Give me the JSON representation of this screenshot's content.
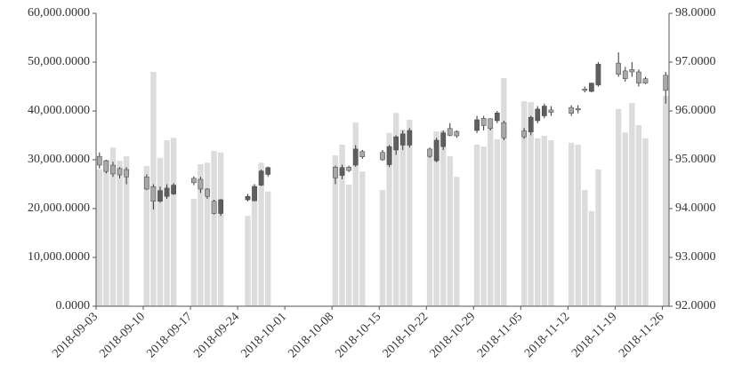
{
  "chart_data": {
    "type": "candlestick-volume",
    "x": [
      "2018-09-03",
      "2018-09-04",
      "2018-09-05",
      "2018-09-06",
      "2018-09-07",
      "2018-09-10",
      "2018-09-11",
      "2018-09-12",
      "2018-09-13",
      "2018-09-14",
      "2018-09-17",
      "2018-09-18",
      "2018-09-19",
      "2018-09-20",
      "2018-09-21",
      "2018-09-25",
      "2018-09-26",
      "2018-09-27",
      "2018-09-28",
      "2018-10-08",
      "2018-10-09",
      "2018-10-10",
      "2018-10-11",
      "2018-10-12",
      "2018-10-15",
      "2018-10-16",
      "2018-10-17",
      "2018-10-18",
      "2018-10-19",
      "2018-10-22",
      "2018-10-23",
      "2018-10-24",
      "2018-10-25",
      "2018-10-26",
      "2018-10-29",
      "2018-10-30",
      "2018-10-31",
      "2018-11-01",
      "2018-11-02",
      "2018-11-05",
      "2018-11-06",
      "2018-11-07",
      "2018-11-08",
      "2018-11-09",
      "2018-11-12",
      "2018-11-13",
      "2018-11-14",
      "2018-11-15",
      "2018-11-16",
      "2018-11-19",
      "2018-11-20",
      "2018-11-21",
      "2018-11-22",
      "2018-11-23",
      "2018-11-26"
    ],
    "volume": [
      28000,
      30000,
      32500,
      29800,
      30700,
      28700,
      48000,
      30400,
      34000,
      34500,
      22000,
      29100,
      29400,
      31800,
      31500,
      18500,
      24900,
      29400,
      23500,
      30900,
      33100,
      24900,
      37600,
      27600,
      23800,
      35500,
      39600,
      36200,
      38200,
      30900,
      35800,
      36000,
      30700,
      26500,
      33100,
      32700,
      36400,
      34200,
      46700,
      42000,
      41800,
      34400,
      34900,
      34000,
      33500,
      33100,
      23800,
      19500,
      28000,
      40400,
      35600,
      41600,
      37100,
      34400,
      43100
    ],
    "open": [
      95.07,
      94.98,
      94.89,
      94.82,
      94.8,
      94.65,
      94.45,
      94.15,
      94.25,
      94.3,
      94.62,
      94.6,
      94.4,
      94.15,
      93.9,
      94.18,
      94.16,
      94.48,
      94.7,
      94.85,
      94.68,
      94.85,
      94.89,
      95.17,
      95.15,
      94.9,
      95.2,
      95.3,
      95.3,
      95.22,
      94.98,
      95.27,
      95.64,
      95.58,
      95.6,
      95.85,
      95.84,
      95.8,
      95.76,
      95.59,
      95.57,
      95.8,
      95.9,
      96.02,
      96.07,
      96.05,
      96.45,
      96.4,
      96.53,
      96.98,
      96.82,
      96.85,
      96.8,
      96.66,
      96.73
    ],
    "high": [
      95.15,
      95.0,
      94.96,
      94.85,
      94.85,
      94.7,
      94.5,
      94.45,
      94.5,
      94.52,
      94.66,
      94.65,
      94.42,
      94.18,
      94.2,
      94.3,
      94.5,
      94.8,
      94.86,
      94.88,
      94.9,
      94.88,
      95.3,
      95.2,
      95.2,
      95.3,
      95.5,
      95.6,
      95.65,
      95.25,
      95.45,
      95.6,
      95.75,
      95.6,
      95.9,
      95.9,
      95.85,
      96.0,
      95.8,
      95.65,
      95.9,
      96.1,
      96.15,
      96.1,
      96.12,
      96.12,
      96.5,
      96.58,
      97.0,
      97.2,
      96.9,
      97.0,
      96.85,
      96.7,
      96.8
    ],
    "low": [
      94.82,
      94.72,
      94.65,
      94.62,
      94.5,
      94.38,
      93.98,
      94.12,
      94.2,
      94.28,
      94.48,
      94.32,
      94.2,
      93.88,
      93.85,
      94.15,
      94.15,
      94.46,
      94.65,
      94.5,
      94.6,
      94.75,
      94.86,
      95.02,
      94.98,
      94.85,
      95.1,
      95.2,
      95.25,
      95.04,
      94.95,
      95.2,
      95.48,
      95.45,
      95.55,
      95.6,
      95.6,
      95.75,
      95.4,
      95.43,
      95.5,
      95.75,
      95.85,
      95.9,
      95.9,
      95.95,
      96.38,
      96.38,
      96.5,
      96.7,
      96.6,
      96.7,
      96.5,
      96.55,
      96.15
    ],
    "close": [
      94.89,
      94.76,
      94.71,
      94.69,
      94.65,
      94.4,
      94.15,
      94.37,
      94.42,
      94.48,
      94.53,
      94.4,
      94.25,
      93.9,
      94.18,
      94.25,
      94.45,
      94.77,
      94.84,
      94.63,
      94.84,
      94.78,
      95.22,
      95.06,
      95.0,
      95.27,
      95.47,
      95.53,
      95.6,
      95.07,
      95.4,
      95.55,
      95.5,
      95.49,
      95.82,
      95.7,
      95.64,
      95.96,
      95.45,
      95.47,
      95.87,
      96.04,
      96.1,
      95.97,
      95.95,
      96.02,
      96.42,
      96.57,
      96.96,
      96.75,
      96.66,
      96.8,
      96.57,
      96.57,
      96.42
    ],
    "volume_color": "#dcdcdc",
    "up_color": "#5f5f5f",
    "down_color": "#a8a8a8",
    "axis_color": "#555555",
    "xlim": [
      "2018-09-03",
      "2018-11-27"
    ],
    "xticks": [
      "2018-09-03",
      "2018-09-10",
      "2018-09-17",
      "2018-09-24",
      "2018-10-01",
      "2018-10-08",
      "2018-10-15",
      "2018-10-22",
      "2018-10-29",
      "2018-11-05",
      "2018-11-12",
      "2018-11-19",
      "2018-11-26"
    ],
    "ylim": [
      0,
      60000
    ],
    "yticks": [
      {
        "value": 0,
        "label": "0.0000"
      },
      {
        "value": 10000,
        "label": "10,000.0000"
      },
      {
        "value": 20000,
        "label": "20,000.0000"
      },
      {
        "value": 30000,
        "label": "30,000.0000"
      },
      {
        "value": 40000,
        "label": "40,000.0000"
      },
      {
        "value": 50000,
        "label": "50,000.0000"
      },
      {
        "value": 60000,
        "label": "60,000.0000"
      }
    ],
    "y2lim": [
      92,
      98
    ],
    "y2ticks": [
      {
        "value": 92,
        "label": "92.0000"
      },
      {
        "value": 93,
        "label": "93.0000"
      },
      {
        "value": 94,
        "label": "94.0000"
      },
      {
        "value": 95,
        "label": "95.0000"
      },
      {
        "value": 96,
        "label": "96.0000"
      },
      {
        "value": 97,
        "label": "97.0000"
      },
      {
        "value": 98,
        "label": "98.0000"
      }
    ]
  }
}
